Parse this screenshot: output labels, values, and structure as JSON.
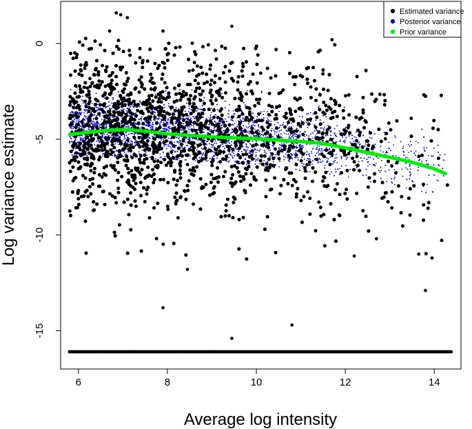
{
  "chart_data": {
    "type": "scatter",
    "title": "",
    "xlabel": "Average log intensity",
    "ylabel": "Log variance estimate",
    "xlim": [
      5.6,
      14.6
    ],
    "ylim": [
      -17,
      2.2
    ],
    "x_ticks": [
      6,
      8,
      10,
      12,
      14
    ],
    "y_ticks": [
      0,
      -5,
      -10,
      -15
    ],
    "x_tick_labels": [
      "6",
      "8",
      "10",
      "12",
      "14"
    ],
    "y_tick_labels": [
      "0",
      "-5",
      "-10",
      "-15"
    ],
    "grid": false,
    "legend_position": "top-right",
    "legend": [
      {
        "label": "Estimated variance",
        "color": "#000000"
      },
      {
        "label": "Posterior variance",
        "color": "#0000cc"
      },
      {
        "label": "Prior variance",
        "color": "#00ee00"
      }
    ],
    "series": [
      {
        "name": "Estimated variance",
        "color": "#000000",
        "marker": "filled-circle",
        "approx_point_count": 10000,
        "density_profile": [
          [
            5.8,
            0.9
          ],
          [
            6.0,
            1.0
          ],
          [
            6.5,
            1.0
          ],
          [
            7.0,
            0.95
          ],
          [
            8.0,
            0.85
          ],
          [
            9.0,
            0.7
          ],
          [
            10.0,
            0.55
          ],
          [
            11.0,
            0.4
          ],
          [
            12.0,
            0.25
          ],
          [
            13.0,
            0.15
          ],
          [
            14.0,
            0.1
          ],
          [
            14.3,
            0.04
          ]
        ],
        "trend_y": [
          [
            5.8,
            -4.5
          ],
          [
            7.0,
            -4.3
          ],
          [
            8.0,
            -4.5
          ],
          [
            9.0,
            -4.7
          ],
          [
            10.0,
            -4.9
          ],
          [
            11.0,
            -5.1
          ],
          [
            12.0,
            -5.4
          ],
          [
            13.0,
            -5.9
          ],
          [
            14.2,
            -6.5
          ]
        ],
        "spread_sd": 1.9,
        "floor_y": -16.1,
        "floor_x_range": [
          5.8,
          14.4
        ],
        "outliers": [
          [
            6.85,
            1.6
          ],
          [
            6.95,
            1.5
          ],
          [
            7.1,
            1.35
          ],
          [
            6.7,
            0.65
          ],
          [
            7.9,
            0.65
          ],
          [
            9.45,
            0.9
          ],
          [
            11.7,
            0.2
          ],
          [
            10.8,
            -14.7
          ],
          [
            9.45,
            -15.4
          ],
          [
            7.9,
            -13.8
          ],
          [
            8.45,
            -11.8
          ],
          [
            12.2,
            -11.1
          ],
          [
            13.8,
            -12.9
          ],
          [
            13.95,
            -11.2
          ],
          [
            13.65,
            -11.0
          ],
          [
            12.7,
            -10.2
          ]
        ]
      },
      {
        "name": "Posterior variance",
        "color": "#0000cc",
        "marker": "small-point",
        "trend_y": [
          [
            5.8,
            -4.5
          ],
          [
            7.0,
            -4.4
          ],
          [
            8.0,
            -4.55
          ],
          [
            9.0,
            -4.75
          ],
          [
            10.0,
            -4.95
          ],
          [
            11.0,
            -5.15
          ],
          [
            12.0,
            -5.45
          ],
          [
            13.0,
            -5.95
          ],
          [
            14.2,
            -6.5
          ]
        ],
        "spread_sd": 0.75,
        "lower_boundary": [
          [
            5.8,
            -5.85
          ],
          [
            8.0,
            -6.05
          ],
          [
            10.0,
            -6.35
          ],
          [
            12.0,
            -7.0
          ],
          [
            14.0,
            -7.9
          ],
          [
            14.2,
            -8.0
          ]
        ]
      },
      {
        "name": "Prior variance",
        "color": "#00ee00",
        "line_width": 5,
        "points": [
          {
            "x": 5.8,
            "y": -4.75
          },
          {
            "x": 6.2,
            "y": -4.65
          },
          {
            "x": 6.6,
            "y": -4.55
          },
          {
            "x": 7.0,
            "y": -4.5
          },
          {
            "x": 7.5,
            "y": -4.58
          },
          {
            "x": 8.0,
            "y": -4.72
          },
          {
            "x": 8.5,
            "y": -4.8
          },
          {
            "x": 9.0,
            "y": -4.88
          },
          {
            "x": 9.5,
            "y": -4.93
          },
          {
            "x": 10.0,
            "y": -4.98
          },
          {
            "x": 10.5,
            "y": -5.05
          },
          {
            "x": 11.0,
            "y": -5.12
          },
          {
            "x": 11.5,
            "y": -5.22
          },
          {
            "x": 12.0,
            "y": -5.45
          },
          {
            "x": 12.5,
            "y": -5.7
          },
          {
            "x": 13.0,
            "y": -5.95
          },
          {
            "x": 13.5,
            "y": -6.2
          },
          {
            "x": 14.0,
            "y": -6.55
          },
          {
            "x": 14.25,
            "y": -6.8
          }
        ]
      }
    ]
  }
}
